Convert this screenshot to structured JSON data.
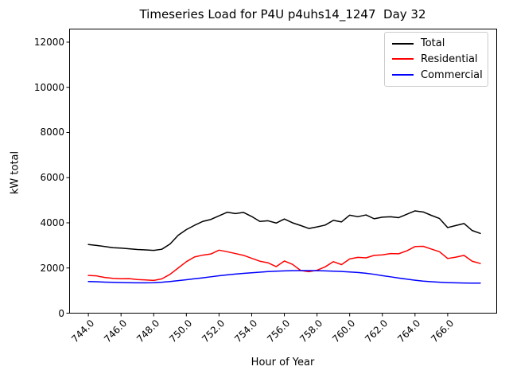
{
  "chart_data": {
    "type": "line",
    "title": "Timeseries Load for P4U p4uhs14_1247  Day 32",
    "xlabel": "Hour of Year",
    "ylabel": "kW total",
    "xlim": [
      742.85,
      769.0
    ],
    "ylim": [
      0,
      12580
    ],
    "grid": false,
    "x_ticks": [
      744,
      746,
      748,
      750,
      752,
      754,
      756,
      758,
      760,
      762,
      764,
      766
    ],
    "x_tick_labels": [
      "744.0",
      "746.0",
      "748.0",
      "750.0",
      "752.0",
      "754.0",
      "756.0",
      "758.0",
      "760.0",
      "762.0",
      "764.0",
      "766.0"
    ],
    "y_ticks": [
      0,
      2000,
      4000,
      6000,
      8000,
      10000,
      12000
    ],
    "y_tick_labels": [
      "0",
      "2000",
      "4000",
      "6000",
      "8000",
      "10000",
      "12000"
    ],
    "legend": {
      "position": "upper right",
      "entries": [
        "Total",
        "Residential",
        "Commercial"
      ]
    },
    "x": [
      744.0,
      744.5,
      745.0,
      745.5,
      746.0,
      746.5,
      747.0,
      747.5,
      748.0,
      748.5,
      749.0,
      749.5,
      750.0,
      750.5,
      751.0,
      751.5,
      752.0,
      752.5,
      753.0,
      753.5,
      754.0,
      754.5,
      755.0,
      755.5,
      756.0,
      756.5,
      757.0,
      757.5,
      758.0,
      758.5,
      759.0,
      759.5,
      760.0,
      760.5,
      761.0,
      761.5,
      762.0,
      762.5,
      763.0,
      763.5,
      764.0,
      764.5,
      765.0,
      765.5,
      766.0,
      766.5,
      767.0,
      767.5,
      768.0
    ],
    "series": [
      {
        "name": "Total",
        "color": "#000000",
        "values": [
          3040,
          3000,
          2950,
          2900,
          2880,
          2850,
          2820,
          2800,
          2780,
          2830,
          3060,
          3450,
          3700,
          3890,
          4060,
          4150,
          4310,
          4470,
          4410,
          4460,
          4280,
          4060,
          4090,
          3990,
          4170,
          4000,
          3880,
          3750,
          3820,
          3900,
          4110,
          4040,
          4340,
          4270,
          4350,
          4180,
          4250,
          4270,
          4230,
          4380,
          4530,
          4480,
          4330,
          4190,
          3790,
          3880,
          3970,
          3660,
          3530
        ]
      },
      {
        "name": "Residential",
        "color": "#ff0000",
        "values": [
          1670,
          1650,
          1580,
          1540,
          1525,
          1530,
          1490,
          1470,
          1450,
          1520,
          1720,
          2000,
          2280,
          2490,
          2570,
          2620,
          2790,
          2720,
          2640,
          2560,
          2430,
          2300,
          2230,
          2060,
          2310,
          2160,
          1890,
          1835,
          1900,
          2050,
          2280,
          2150,
          2400,
          2470,
          2450,
          2560,
          2580,
          2640,
          2630,
          2760,
          2950,
          2960,
          2840,
          2720,
          2420,
          2480,
          2560,
          2300,
          2200
        ]
      },
      {
        "name": "Commercial",
        "color": "#0000ff",
        "values": [
          1400,
          1390,
          1375,
          1365,
          1355,
          1350,
          1345,
          1345,
          1350,
          1370,
          1400,
          1440,
          1480,
          1525,
          1565,
          1610,
          1655,
          1695,
          1730,
          1760,
          1790,
          1815,
          1840,
          1858,
          1870,
          1880,
          1885,
          1885,
          1880,
          1872,
          1860,
          1845,
          1825,
          1800,
          1765,
          1720,
          1660,
          1610,
          1555,
          1505,
          1460,
          1420,
          1390,
          1368,
          1352,
          1342,
          1336,
          1332,
          1330
        ]
      }
    ]
  }
}
